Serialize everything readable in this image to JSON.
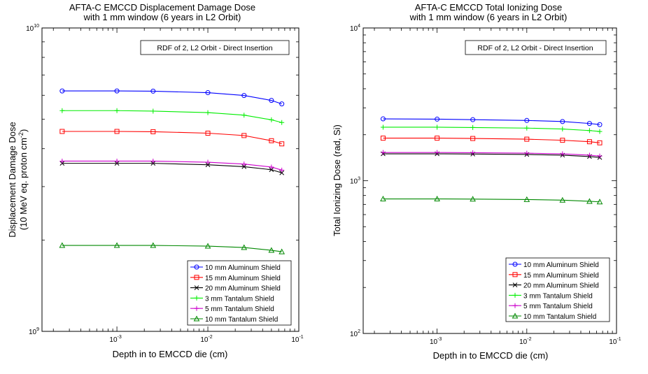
{
  "chart_data": [
    {
      "type": "line",
      "x_scale": "log",
      "y_scale": "log",
      "title_line1": "AFTA-C EMCCD Displacement Damage Dose",
      "title_line2": "with 1 mm window (6 years in L2 Orbit)",
      "xlabel": "Depth in to EMCCD die (cm)",
      "ylabel_line1": "Displacement Damage Dose",
      "ylabel_line2_prefix": "(10 MeV eq. proton cm",
      "ylabel_line2_sup": "-2",
      "ylabel_line2_suffix": ")",
      "annotation": "RDF of 2, L2 Orbit - Direct Insertion",
      "xlim": [
        0.00015,
        0.1
      ],
      "ylim": [
        1000000000,
        10000000000
      ],
      "x_ticks": [
        {
          "value": 0.001,
          "base": "10",
          "exp": "-3"
        },
        {
          "value": 0.01,
          "base": "10",
          "exp": "-2"
        },
        {
          "value": 0.1,
          "base": "10",
          "exp": "-1"
        }
      ],
      "y_ticks": [
        {
          "value": 1000000000,
          "base": "10",
          "exp": "9"
        },
        {
          "value": 10000000000,
          "base": "10",
          "exp": "10"
        }
      ],
      "x": [
        0.00025,
        0.001,
        0.0025,
        0.01,
        0.025,
        0.05,
        0.065
      ],
      "series": [
        {
          "name": "10 mm Aluminum Shield",
          "marker": "circle",
          "color": "#0000ff",
          "values": [
            6200000000,
            6200000000,
            6190000000,
            6120000000,
            5990000000,
            5770000000,
            5620000000
          ]
        },
        {
          "name": "15 mm Aluminum Shield",
          "marker": "square",
          "color": "#ff0000",
          "values": [
            4560000000,
            4560000000,
            4550000000,
            4500000000,
            4420000000,
            4250000000,
            4150000000
          ]
        },
        {
          "name": "20 mm Aluminum Shield",
          "marker": "x",
          "color": "#000000",
          "values": [
            3580000000,
            3580000000,
            3580000000,
            3540000000,
            3490000000,
            3410000000,
            3330000000
          ]
        },
        {
          "name": "3 mm Tantalum Shield",
          "marker": "plus",
          "color": "#00ee00",
          "values": [
            5340000000,
            5340000000,
            5320000000,
            5260000000,
            5160000000,
            4980000000,
            4880000000
          ]
        },
        {
          "name": "5 mm Tantalum Shield",
          "marker": "plus",
          "color": "#cc00cc",
          "values": [
            3640000000,
            3640000000,
            3640000000,
            3610000000,
            3560000000,
            3480000000,
            3400000000
          ]
        },
        {
          "name": "10 mm Tantalum Shield",
          "marker": "triangle",
          "color": "#008800",
          "values": [
            1920000000,
            1920000000,
            1920000000,
            1910000000,
            1890000000,
            1850000000,
            1830000000
          ]
        }
      ]
    },
    {
      "type": "line",
      "x_scale": "log",
      "y_scale": "log",
      "title_line1": "AFTA-C EMCCD Total Ionizing Dose",
      "title_line2": "with 1 mm window (6 years in L2 Orbit)",
      "xlabel": "Depth in to EMCCD die (cm)",
      "ylabel_line1": "Total Ionizing Dose (rad, Si)",
      "annotation": "RDF of 2, L2 Orbit - Direct Insertion",
      "xlim": [
        0.00015,
        0.1
      ],
      "ylim": [
        100,
        10000
      ],
      "x_ticks": [
        {
          "value": 0.001,
          "base": "10",
          "exp": "-3"
        },
        {
          "value": 0.01,
          "base": "10",
          "exp": "-2"
        },
        {
          "value": 0.1,
          "base": "10",
          "exp": "-1"
        }
      ],
      "y_ticks": [
        {
          "value": 100,
          "base": "10",
          "exp": "2"
        },
        {
          "value": 1000,
          "base": "10",
          "exp": "3"
        },
        {
          "value": 10000,
          "base": "10",
          "exp": "4"
        }
      ],
      "x": [
        0.00025,
        0.001,
        0.0025,
        0.01,
        0.025,
        0.05,
        0.065
      ],
      "series": [
        {
          "name": "10 mm Aluminum Shield",
          "marker": "circle",
          "color": "#0000ff",
          "values": [
            2540,
            2530,
            2510,
            2480,
            2440,
            2370,
            2330
          ]
        },
        {
          "name": "15 mm Aluminum Shield",
          "marker": "square",
          "color": "#ff0000",
          "values": [
            1900,
            1900,
            1890,
            1870,
            1840,
            1800,
            1770
          ]
        },
        {
          "name": "20 mm Aluminum Shield",
          "marker": "x",
          "color": "#000000",
          "values": [
            1500,
            1500,
            1495,
            1485,
            1470,
            1440,
            1420
          ]
        },
        {
          "name": "3 mm Tantalum Shield",
          "marker": "plus",
          "color": "#00ee00",
          "values": [
            2240,
            2240,
            2230,
            2210,
            2180,
            2130,
            2100
          ]
        },
        {
          "name": "5 mm Tantalum Shield",
          "marker": "plus",
          "color": "#cc00cc",
          "values": [
            1530,
            1530,
            1525,
            1515,
            1500,
            1470,
            1450
          ]
        },
        {
          "name": "10 mm Tantalum Shield",
          "marker": "triangle",
          "color": "#008800",
          "values": [
            760,
            760,
            758,
            753,
            746,
            733,
            727
          ]
        }
      ]
    }
  ]
}
